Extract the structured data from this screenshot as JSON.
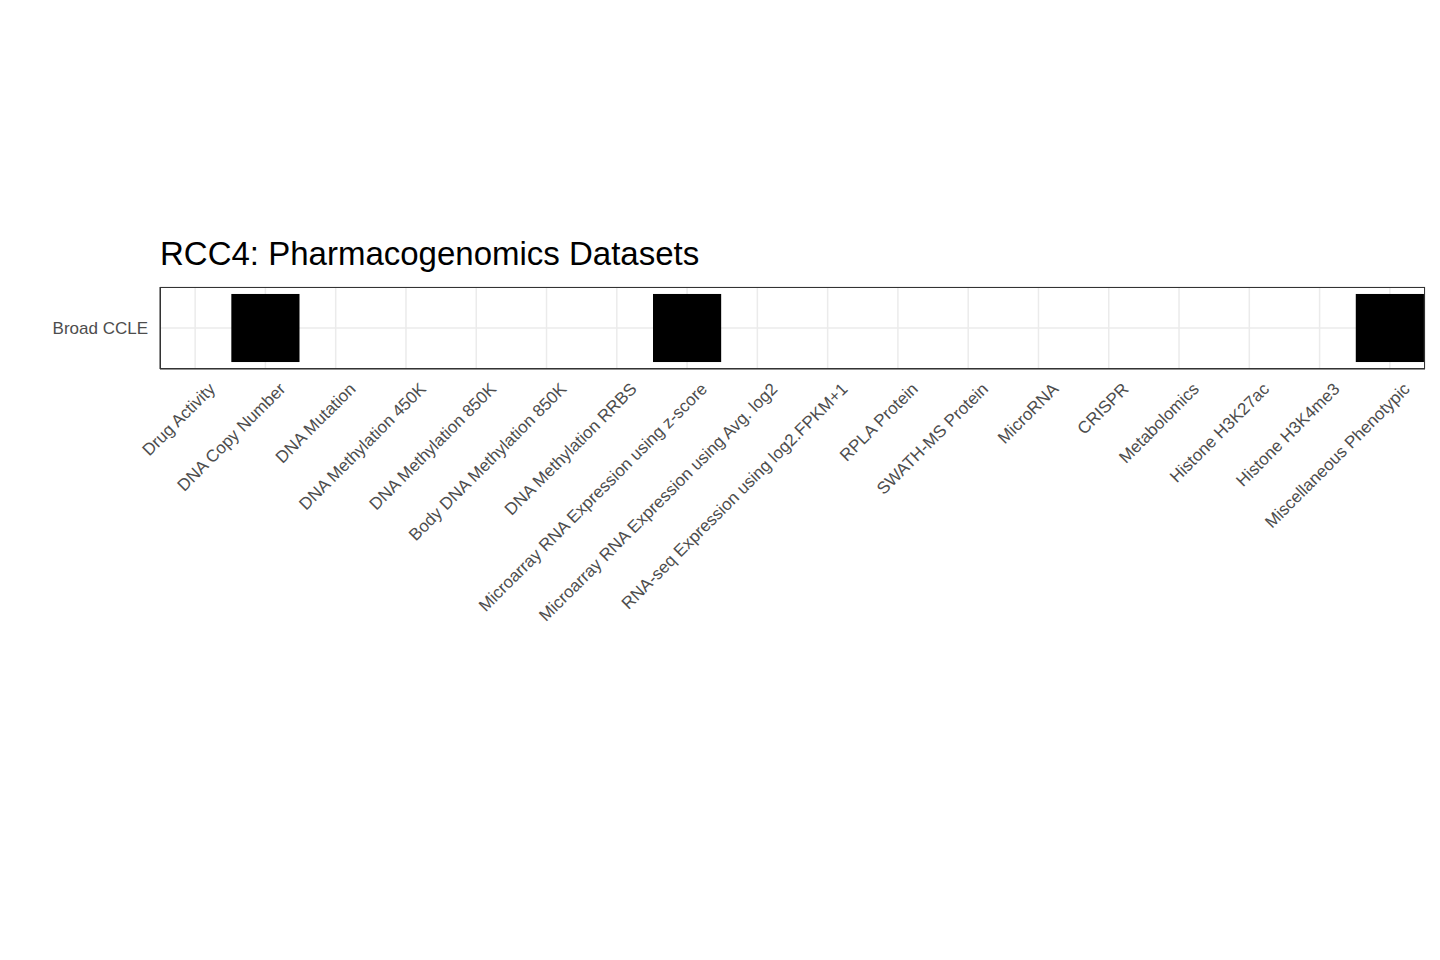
{
  "chart_data": {
    "type": "heatmap",
    "title": "RCC4: Pharmacogenomics Datasets",
    "x": [
      "Drug Activity",
      "DNA Copy Number",
      "DNA Mutation",
      "DNA Methylation 450K",
      "DNA Methylation 850K",
      "Body DNA Methylation 850K",
      "DNA Methylation RRBS",
      "Microarray RNA Expression using z-score",
      "Microarray RNA Expression using Avg. log2",
      "RNA-seq Expression using log2.FPKM+1",
      "RPLA Protein",
      "SWATH-MS Protein",
      "MicroRNA",
      "CRISPR",
      "Metabolomics",
      "Histone H3K27ac",
      "Histone H3K4me3",
      "Miscellaneous Phenotypic"
    ],
    "y": [
      "Broad CCLE"
    ],
    "cells": [
      [
        0,
        1,
        0,
        0,
        0,
        0,
        0,
        1,
        0,
        0,
        0,
        0,
        0,
        0,
        0,
        0,
        0,
        1
      ]
    ],
    "color": "#000000",
    "grid": true
  }
}
